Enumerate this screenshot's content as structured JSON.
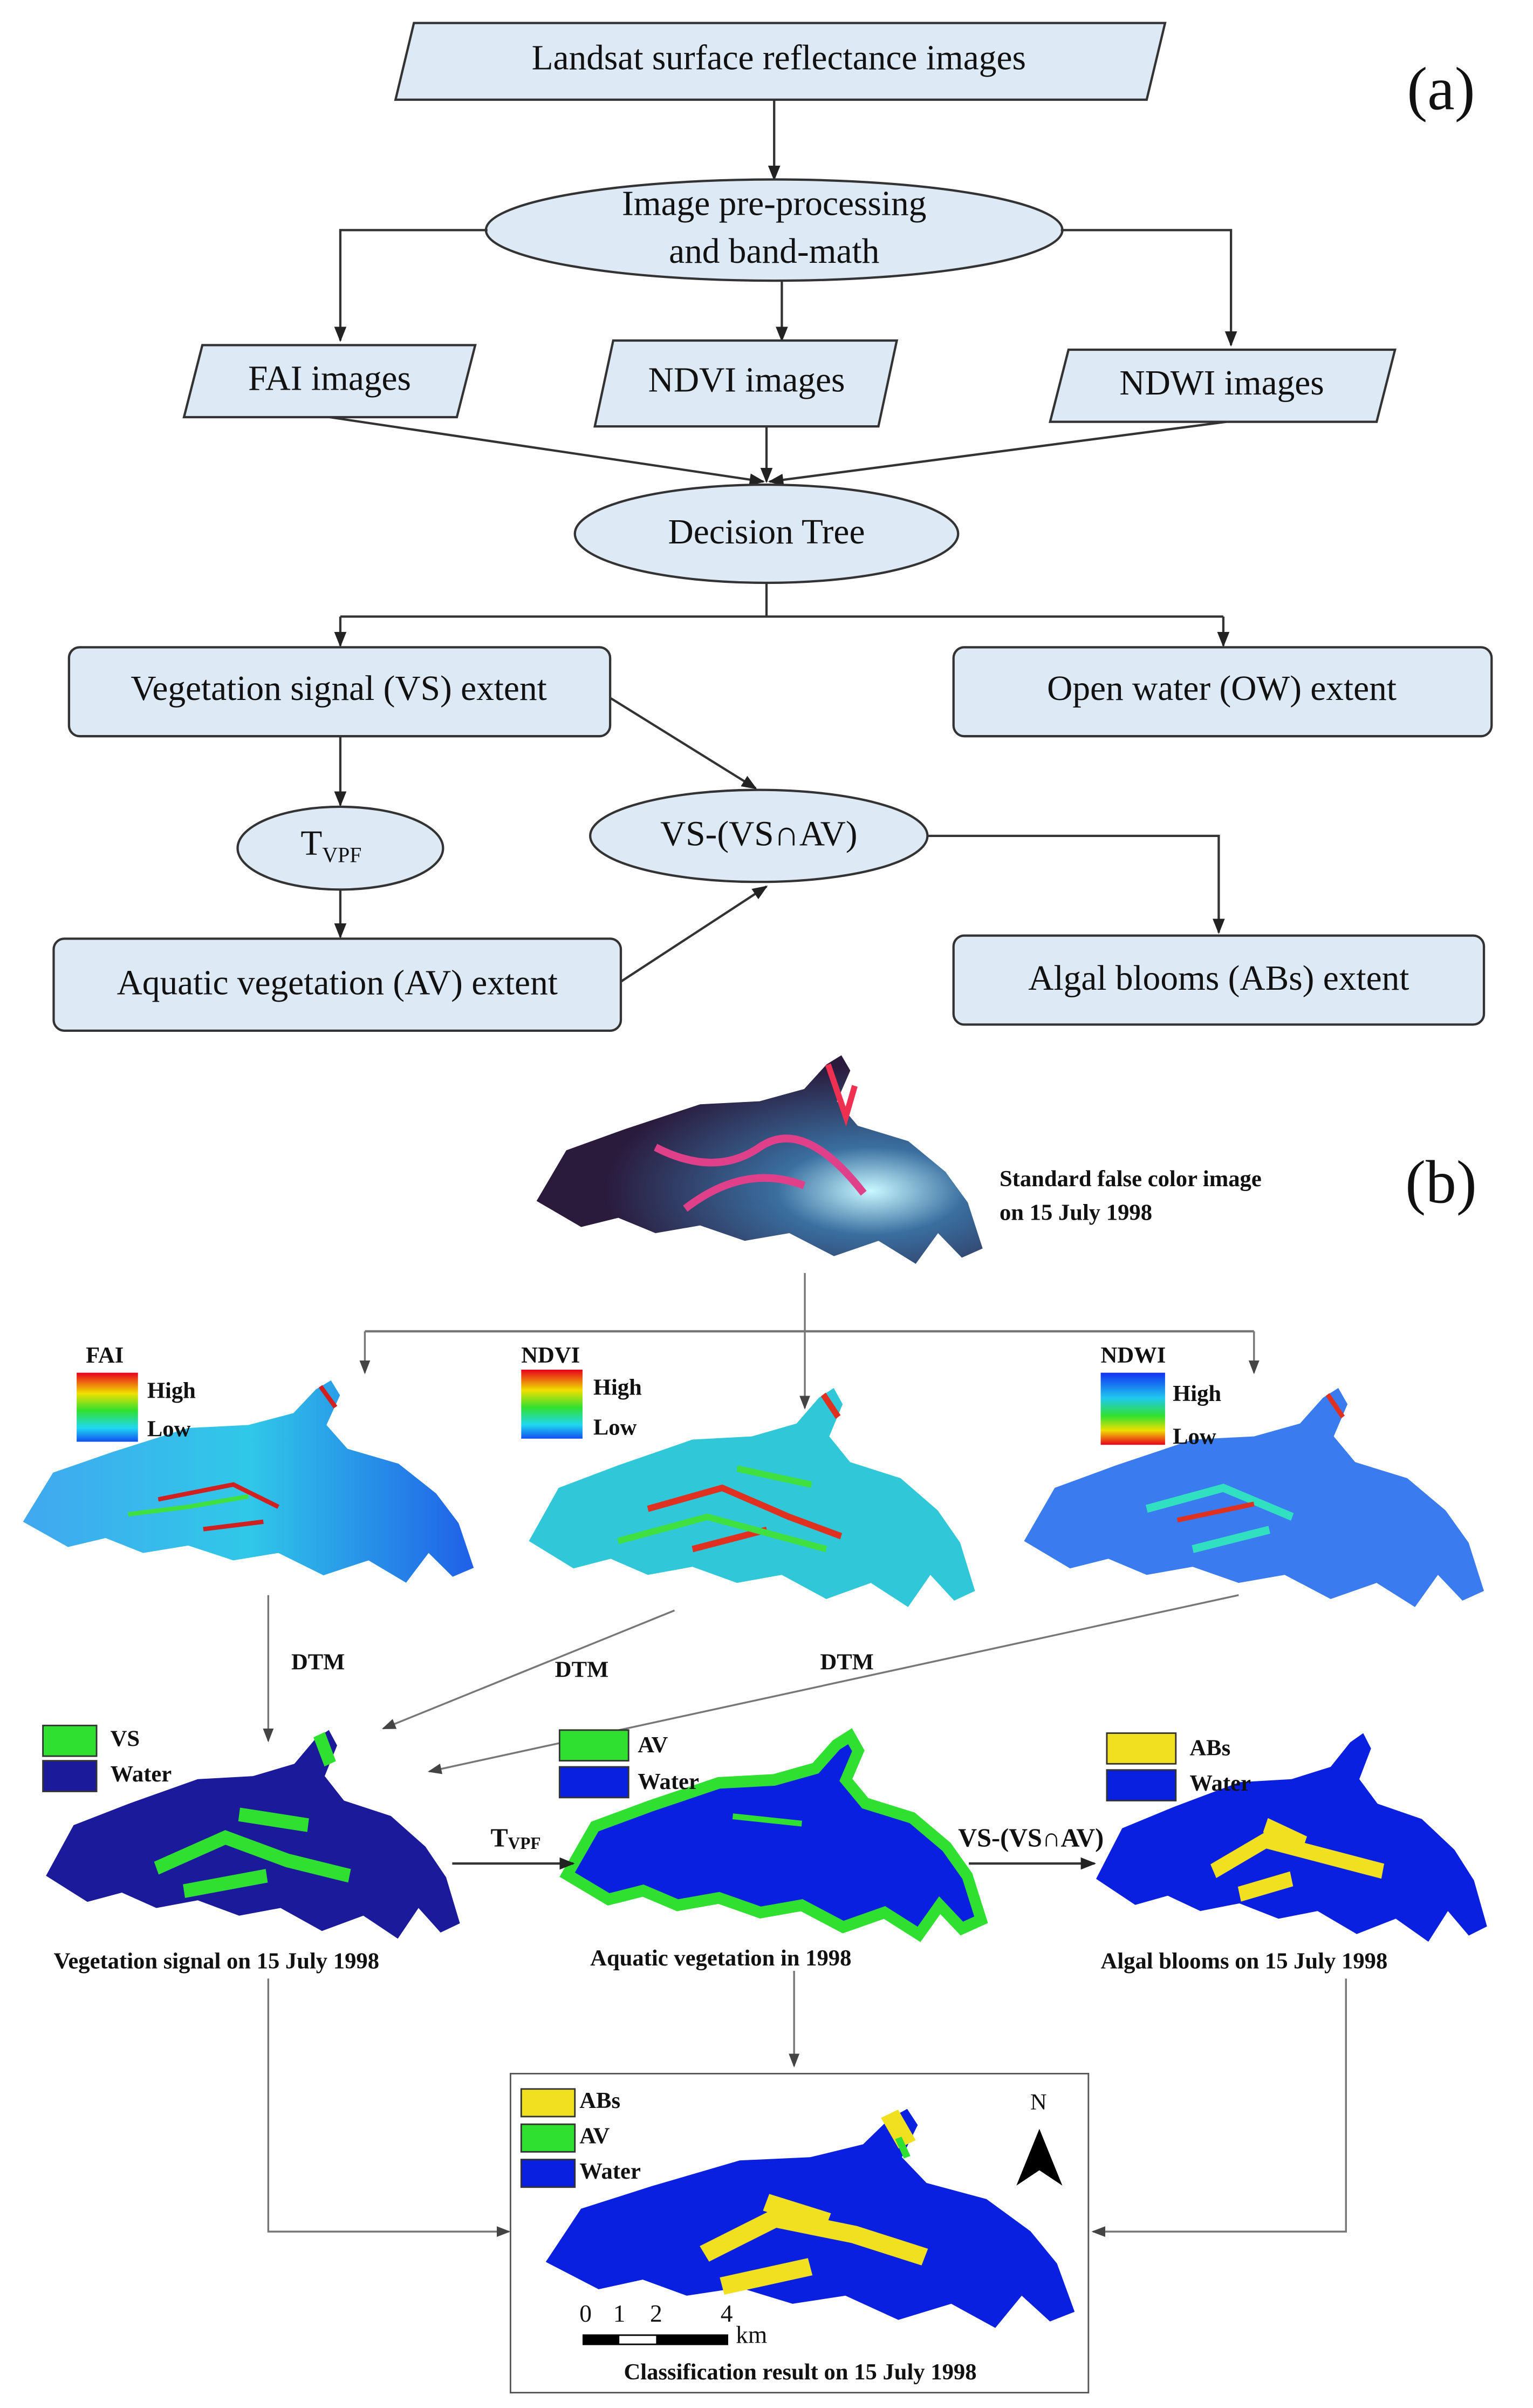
{
  "panel_a": {
    "label": "(a)",
    "nodes": [
      {
        "lines": [
          "Landsat surface reflectance images"
        ]
      },
      {
        "lines": [
          "Image pre-processing",
          "and band-math"
        ]
      },
      {
        "lines": [
          "FAI images"
        ]
      },
      {
        "lines": [
          "NDVI images"
        ]
      },
      {
        "lines": [
          "NDWI images"
        ]
      },
      {
        "lines": [
          "Decision Tree"
        ]
      },
      {
        "lines": [
          "Vegetation signal (VS) extent"
        ]
      },
      {
        "lines": [
          "Open water (OW) extent"
        ]
      },
      {
        "lines": [
          "T"
        ],
        "subscript": "VPF"
      },
      {
        "lines": [
          "VS-(VS∩AV)"
        ]
      },
      {
        "lines": [
          "Aquatic vegetation (AV) extent"
        ]
      },
      {
        "lines": [
          "Algal blooms (ABs) extent"
        ]
      }
    ]
  },
  "panel_b": {
    "label": "(b)",
    "false_color": {
      "lines": [
        "Standard false color image",
        "on 15 July 1998"
      ]
    },
    "indices": [
      {
        "name": "FAI",
        "high": "High",
        "low": "Low"
      },
      {
        "name": "NDVI",
        "high": "High",
        "low": "Low"
      },
      {
        "name": "NDWI",
        "high": "High",
        "low": "Low"
      }
    ],
    "dtm_labels": [
      "DTM",
      "DTM",
      "DTM"
    ],
    "steps": [
      {
        "text": "T",
        "subscript": "VPF"
      },
      {
        "text": "VS-(VS∩AV)"
      }
    ],
    "results": [
      {
        "legend": [
          "VS",
          "Water"
        ],
        "caption": "Vegetation signal on 15 July 1998"
      },
      {
        "legend": [
          "AV",
          "Water"
        ],
        "caption": "Aquatic vegetation in 1998"
      },
      {
        "legend": [
          "ABs",
          "Water"
        ],
        "caption": "Algal blooms on 15 July 1998"
      }
    ],
    "final": {
      "legend": [
        "ABs",
        "AV",
        "Water"
      ],
      "north": "N",
      "scale_ticks": [
        0,
        1,
        2,
        4
      ],
      "scale_unit": "km",
      "caption": "Classification result on 15 July 1998"
    }
  }
}
